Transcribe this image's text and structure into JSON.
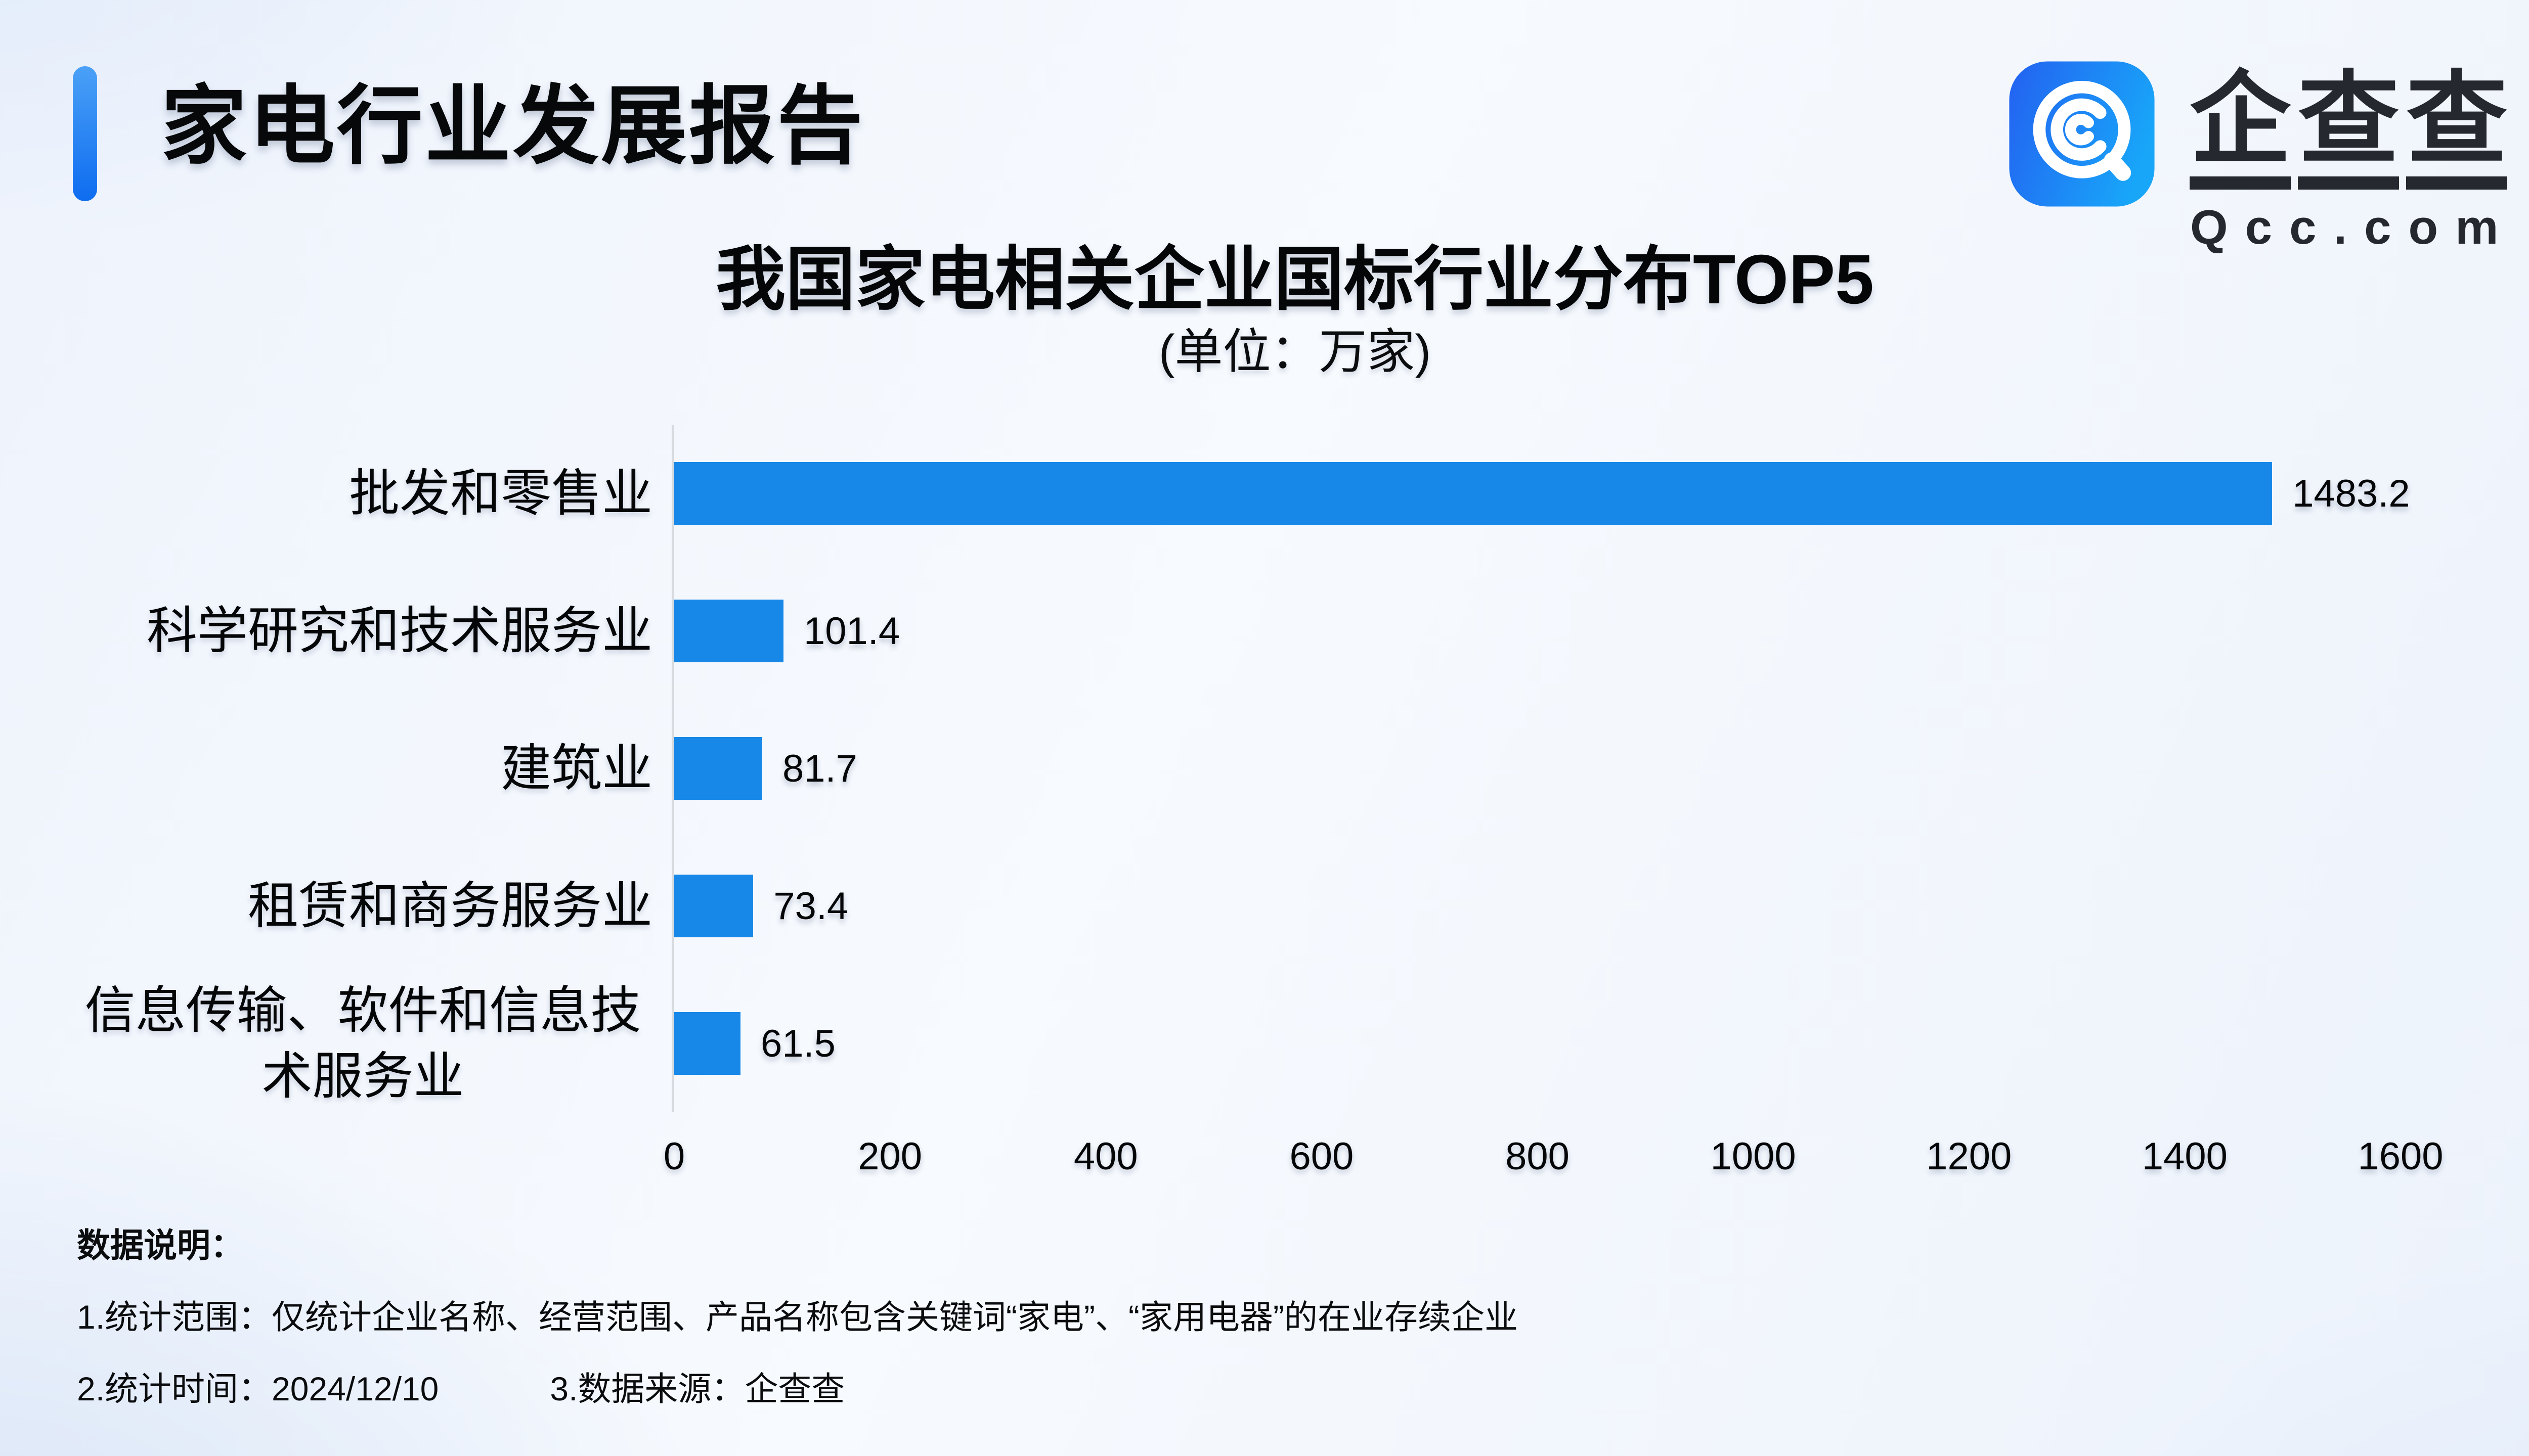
{
  "page": {
    "report_title": "家电行业发展报告"
  },
  "logo": {
    "brand_chars": [
      "企",
      "查",
      "查"
    ],
    "brand_en": "Qcc.com",
    "icon": "qcc-magnifier-spiral",
    "icon_gradient": [
      "#2363f1",
      "#18a6f9"
    ]
  },
  "chart_data": {
    "type": "bar",
    "orientation": "horizontal",
    "title": "我国家电相关企业国标行业分布TOP5",
    "subtitle": "(单位：万家)",
    "unit": "万家",
    "categories": [
      "批发和零售业",
      "科学研究和技术服务业",
      "建筑业",
      "租赁和商务服务业",
      "信息传输、软件和信息技术服务业"
    ],
    "values": [
      1483.2,
      101.4,
      81.7,
      73.4,
      61.5
    ],
    "value_label_position": "outside-right",
    "xlim": [
      0,
      1600
    ],
    "x_ticks": [
      0,
      200,
      400,
      600,
      800,
      1000,
      1200,
      1400,
      1600
    ],
    "grid": false,
    "bar_color": "#1788e8",
    "axis_line_color": "#d7dade",
    "accent_color": "#0e6cf0"
  },
  "notes": {
    "heading": "数据说明：",
    "items": [
      "1.统计范围：仅统计企业名称、经营范围、产品名称包含关键词“家电”、“家用电器”的在业存续企业",
      "2.统计时间：2024/12/10",
      "3.数据来源：企查查"
    ]
  }
}
